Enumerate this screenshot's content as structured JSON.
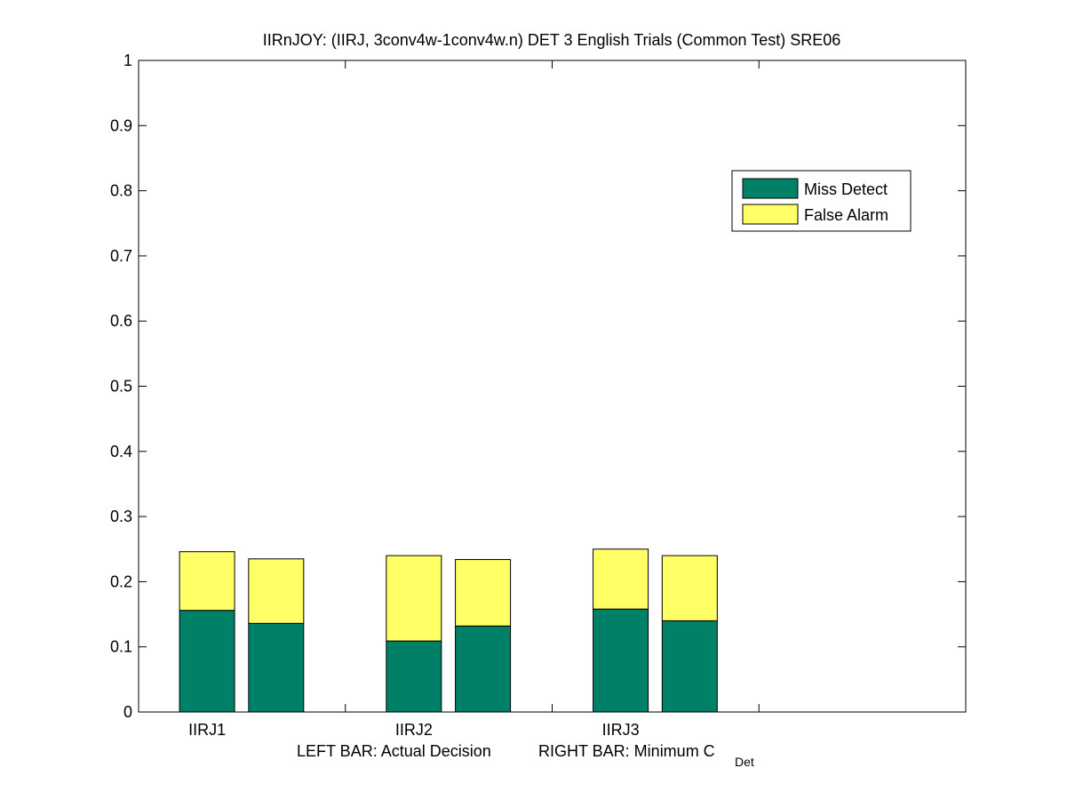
{
  "chart_data": {
    "type": "bar",
    "stacked": true,
    "title": "IIRnJOY: (IIRJ, 3conv4w-1conv4w.n) DET 3 English Trials (Common Test) SRE06",
    "xlabel": {
      "left": "LEFT BAR: Actual Decision",
      "right_prefix": "RIGHT BAR: Minimum C",
      "right_subscript": "Det"
    },
    "ylabel": "",
    "ylim": [
      0,
      1
    ],
    "yticks": [
      "0",
      "0.1",
      "0.2",
      "0.3",
      "0.4",
      "0.5",
      "0.6",
      "0.7",
      "0.8",
      "0.9",
      "1"
    ],
    "categories": [
      "IIRJ1",
      "IIRJ2",
      "IIRJ3"
    ],
    "bars_per_category": [
      "Actual Decision",
      "Minimum C_Det"
    ],
    "series": [
      {
        "name": "Miss Detect",
        "color": "#008066",
        "values": [
          [
            0.156,
            0.136
          ],
          [
            0.109,
            0.132
          ],
          [
            0.158,
            0.14
          ]
        ]
      },
      {
        "name": "False Alarm",
        "color": "#ffff66",
        "values": [
          [
            0.09,
            0.099
          ],
          [
            0.131,
            0.102
          ],
          [
            0.092,
            0.1
          ]
        ]
      }
    ],
    "legend_position": "upper-right",
    "grid": false
  }
}
